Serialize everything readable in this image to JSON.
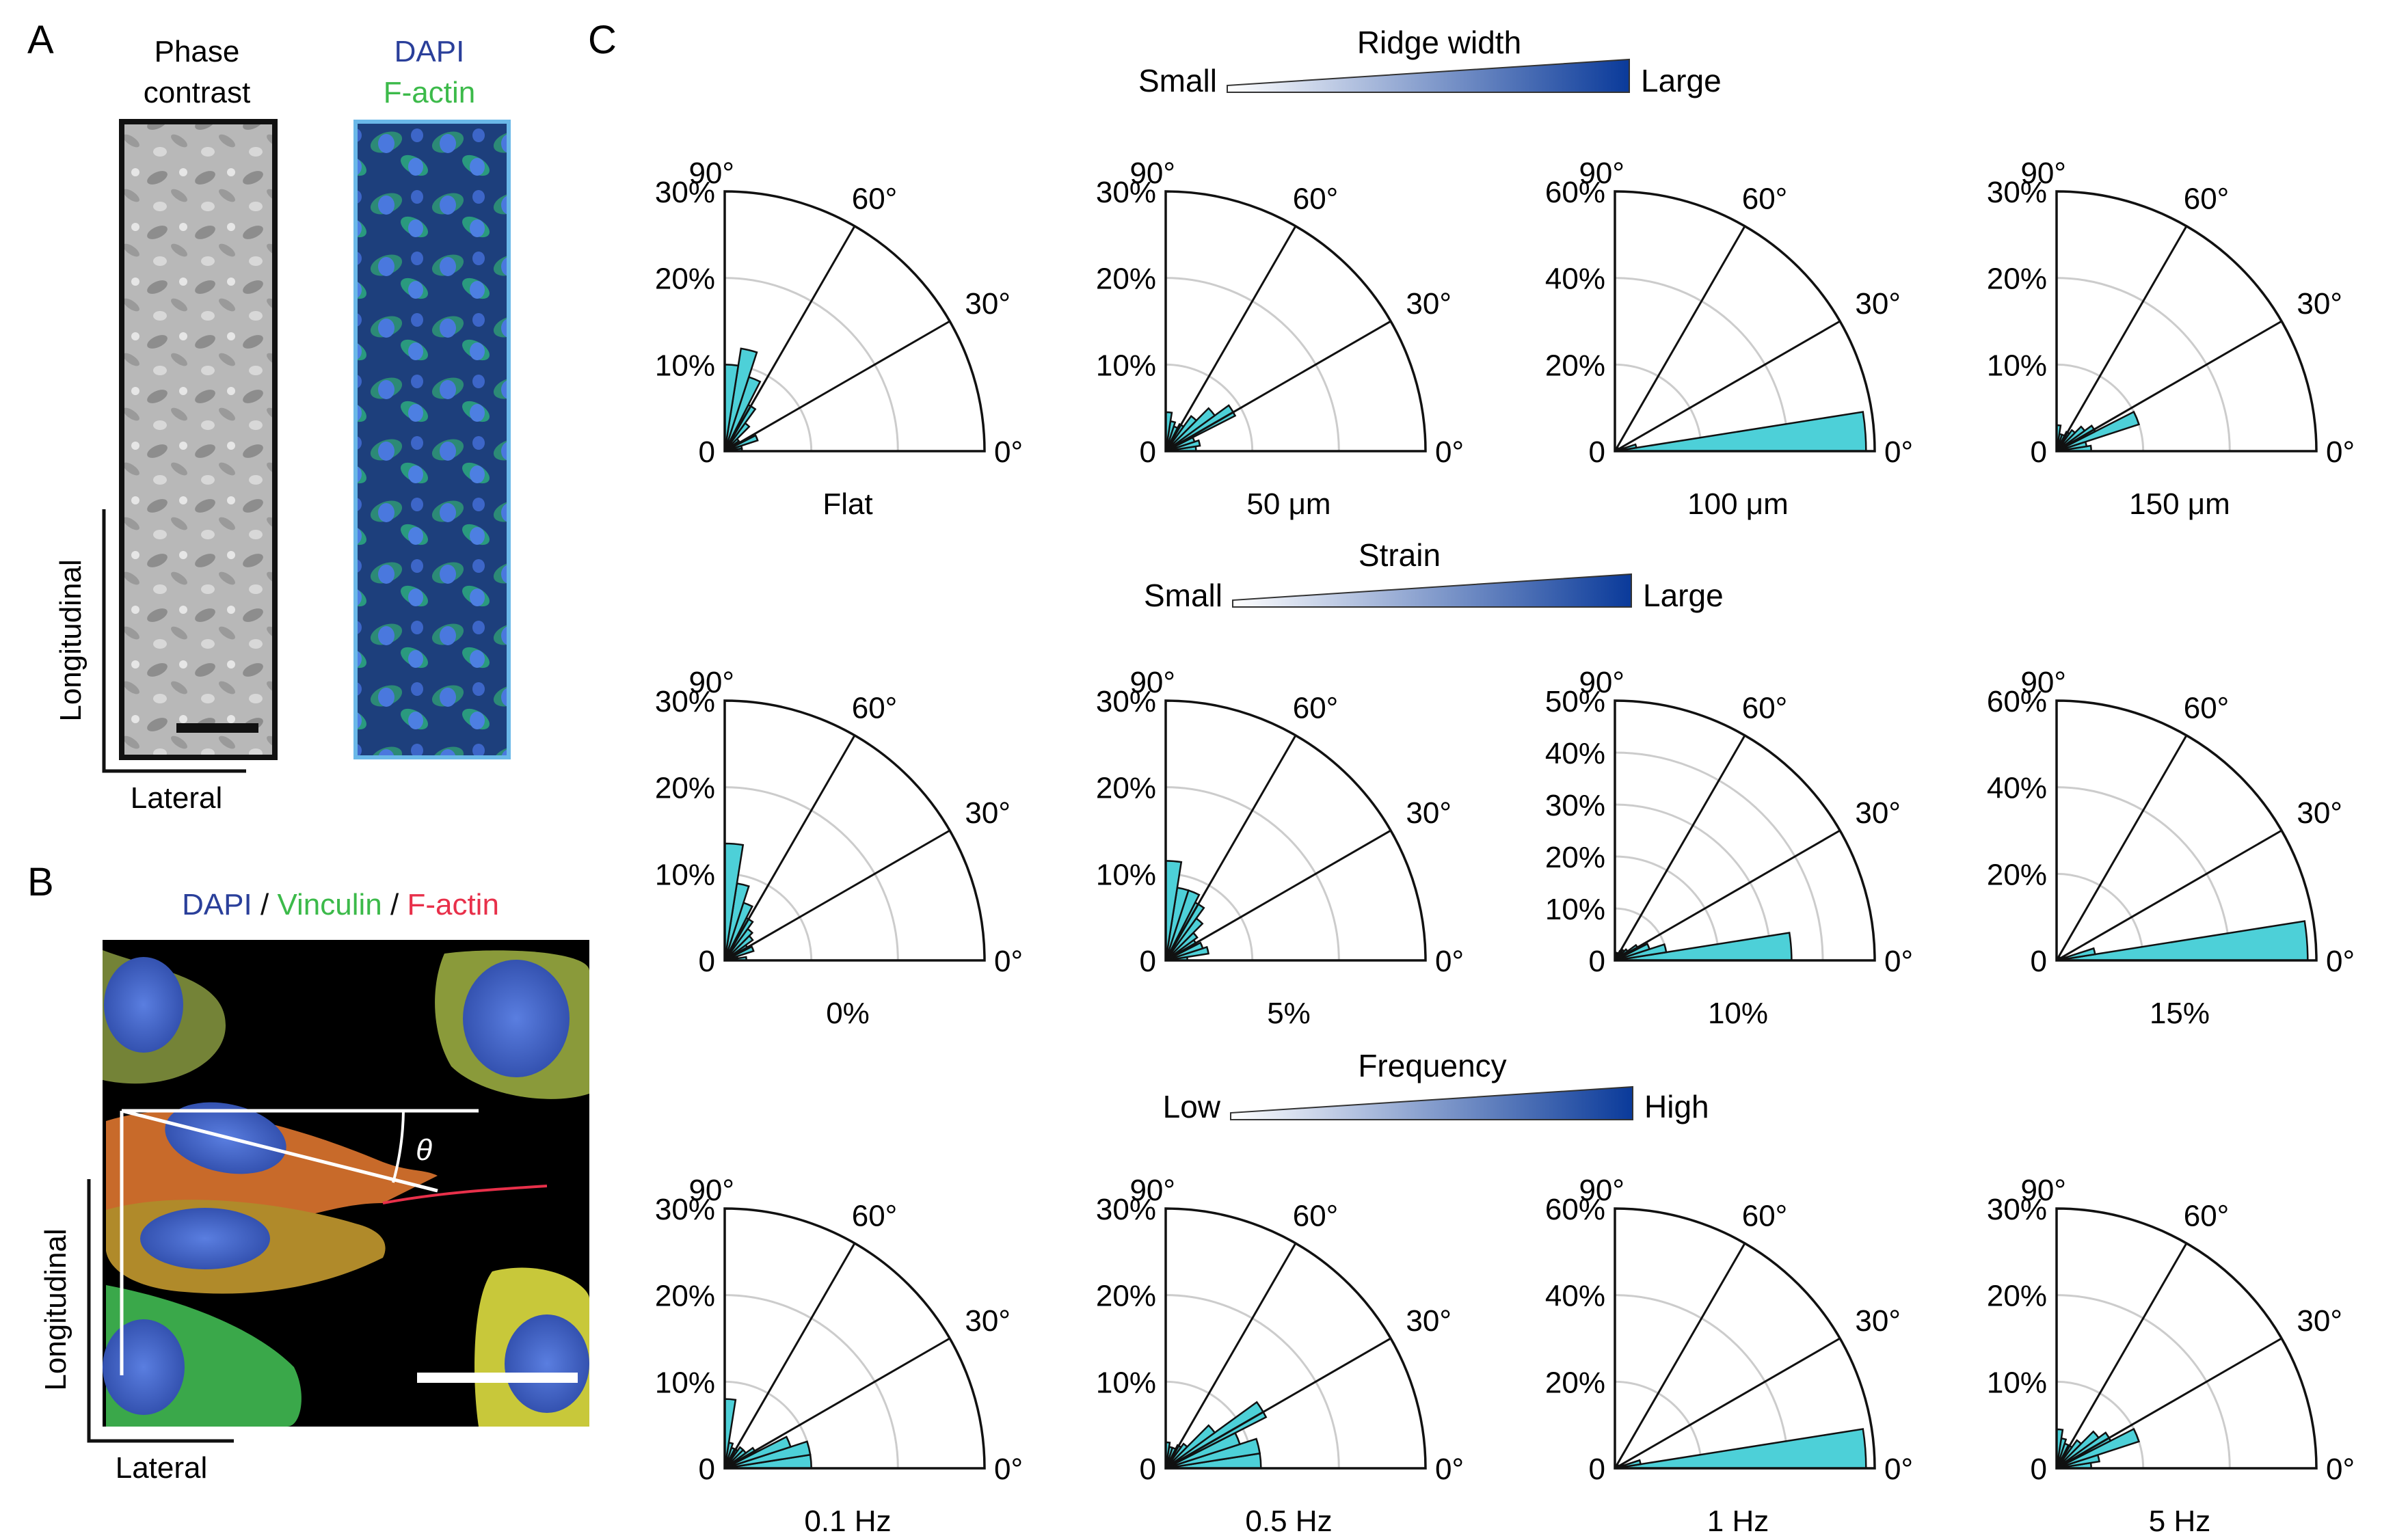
{
  "panels": {
    "a": {
      "letter": "A",
      "phase_title": [
        "Phase",
        "contrast"
      ],
      "stain_title": {
        "dapi": "DAPI",
        "factin": "F-actin"
      },
      "axis_longitudinal": "Longitudinal",
      "axis_lateral": "Lateral"
    },
    "b": {
      "letter": "B",
      "stain": {
        "dapi": "DAPI",
        "sep": " / ",
        "vinculin": "Vinculin",
        "factin": "F-actin"
      },
      "angle_symbol": "θ",
      "axis_longitudinal": "Longitudinal",
      "axis_lateral": "Lateral"
    },
    "c": {
      "letter": "C"
    }
  },
  "gradients": [
    {
      "title": "Ridge width",
      "low": "Small",
      "high": "Large"
    },
    {
      "title": "Strain",
      "low": "Small",
      "high": "Large"
    },
    {
      "title": "Frequency",
      "low": "Low",
      "high": "High"
    }
  ],
  "colors": {
    "dapi": "#2a3f9a",
    "factin_green": "#3cba4a",
    "vinculin": "#3cba4a",
    "factin_red": "#e8304a",
    "bar_fill": "#4dd0d8",
    "gradient_end": "#0a3a9a",
    "grid": "#cccccc"
  },
  "angle_labels": [
    "90°",
    "60°",
    "30°",
    "0°"
  ],
  "chart_data": [
    {
      "type": "polar-histogram",
      "label": "Flat",
      "r_max": 30,
      "r_ticks": [
        "30%",
        "20%",
        "10%",
        "0"
      ],
      "bin_deg": 9,
      "values": [
        2,
        2,
        4,
        1,
        2,
        4,
        6,
        9,
        12,
        10
      ]
    },
    {
      "type": "polar-histogram",
      "label": "50 μm",
      "r_max": 30,
      "r_ticks": [
        "30%",
        "20%",
        "10%",
        "0"
      ],
      "bin_deg": 9,
      "values": [
        3.5,
        4,
        3.5,
        9,
        7,
        5,
        3.5,
        3,
        3.5,
        4.5
      ]
    },
    {
      "type": "polar-histogram",
      "label": "100 μm",
      "r_max": 60,
      "r_ticks": [
        "60%",
        "40%",
        "20%",
        "0"
      ],
      "bin_deg": 9,
      "values": [
        58,
        5,
        2,
        1,
        1,
        1,
        0.5,
        0.5,
        0.5,
        0.5
      ]
    },
    {
      "type": "polar-histogram",
      "label": "150 μm",
      "r_max": 30,
      "r_ticks": [
        "30%",
        "20%",
        "10%",
        "0"
      ],
      "bin_deg": 9,
      "values": [
        4,
        3.5,
        10,
        5,
        4,
        3,
        2.5,
        2,
        2,
        3
      ]
    },
    {
      "type": "polar-histogram",
      "label": "0%",
      "r_max": 30,
      "r_ticks": [
        "30%",
        "20%",
        "10%",
        "0"
      ],
      "bin_deg": 9,
      "values": [
        2.5,
        1.5,
        3.5,
        3,
        4,
        4.5,
        5.5,
        7,
        9,
        13.5
      ]
    },
    {
      "type": "polar-histogram",
      "label": "5%",
      "r_max": 30,
      "r_ticks": [
        "30%",
        "20%",
        "10%",
        "0"
      ],
      "bin_deg": 9,
      "values": [
        2.5,
        5,
        4.5,
        4,
        4.5,
        6,
        7.5,
        8.5,
        8.5,
        11.5
      ]
    },
    {
      "type": "polar-histogram",
      "label": "10%",
      "r_max": 50,
      "r_ticks": [
        "50%",
        "40%",
        "30%",
        "20%",
        "10%",
        "0"
      ],
      "bin_deg": 9,
      "values": [
        34,
        10,
        7,
        5,
        3,
        2.5,
        2,
        1.5,
        1.5,
        1.5
      ]
    },
    {
      "type": "polar-histogram",
      "label": "15%",
      "r_max": 60,
      "r_ticks": [
        "60%",
        "40%",
        "20%",
        "0"
      ],
      "bin_deg": 9,
      "values": [
        58,
        9,
        2,
        1,
        1,
        0.5,
        0.5,
        0.5,
        0.5,
        0.5
      ]
    },
    {
      "type": "polar-histogram",
      "label": "0.1 Hz",
      "r_max": 30,
      "r_ticks": [
        "30%",
        "20%",
        "10%",
        "0"
      ],
      "bin_deg": 9,
      "values": [
        10,
        10,
        8,
        4,
        3,
        3,
        2.5,
        2.5,
        3,
        8
      ]
    },
    {
      "type": "polar-histogram",
      "label": "0.5 Hz",
      "r_max": 30,
      "r_ticks": [
        "30%",
        "20%",
        "10%",
        "0"
      ],
      "bin_deg": 9,
      "values": [
        11,
        11,
        9,
        13,
        7,
        3.5,
        3,
        2.5,
        2.5,
        3
      ]
    },
    {
      "type": "polar-histogram",
      "label": "1 Hz",
      "r_max": 60,
      "r_ticks": [
        "60%",
        "40%",
        "20%",
        "0"
      ],
      "bin_deg": 9,
      "values": [
        58,
        6,
        2,
        1,
        1,
        0.5,
        0.5,
        0.5,
        0.5,
        0.5
      ]
    },
    {
      "type": "polar-histogram",
      "label": "5 Hz",
      "r_max": 30,
      "r_ticks": [
        "30%",
        "20%",
        "10%",
        "0"
      ],
      "bin_deg": 9,
      "values": [
        4,
        5,
        10,
        7,
        6,
        4,
        3,
        3,
        3.5,
        4.5
      ]
    }
  ]
}
